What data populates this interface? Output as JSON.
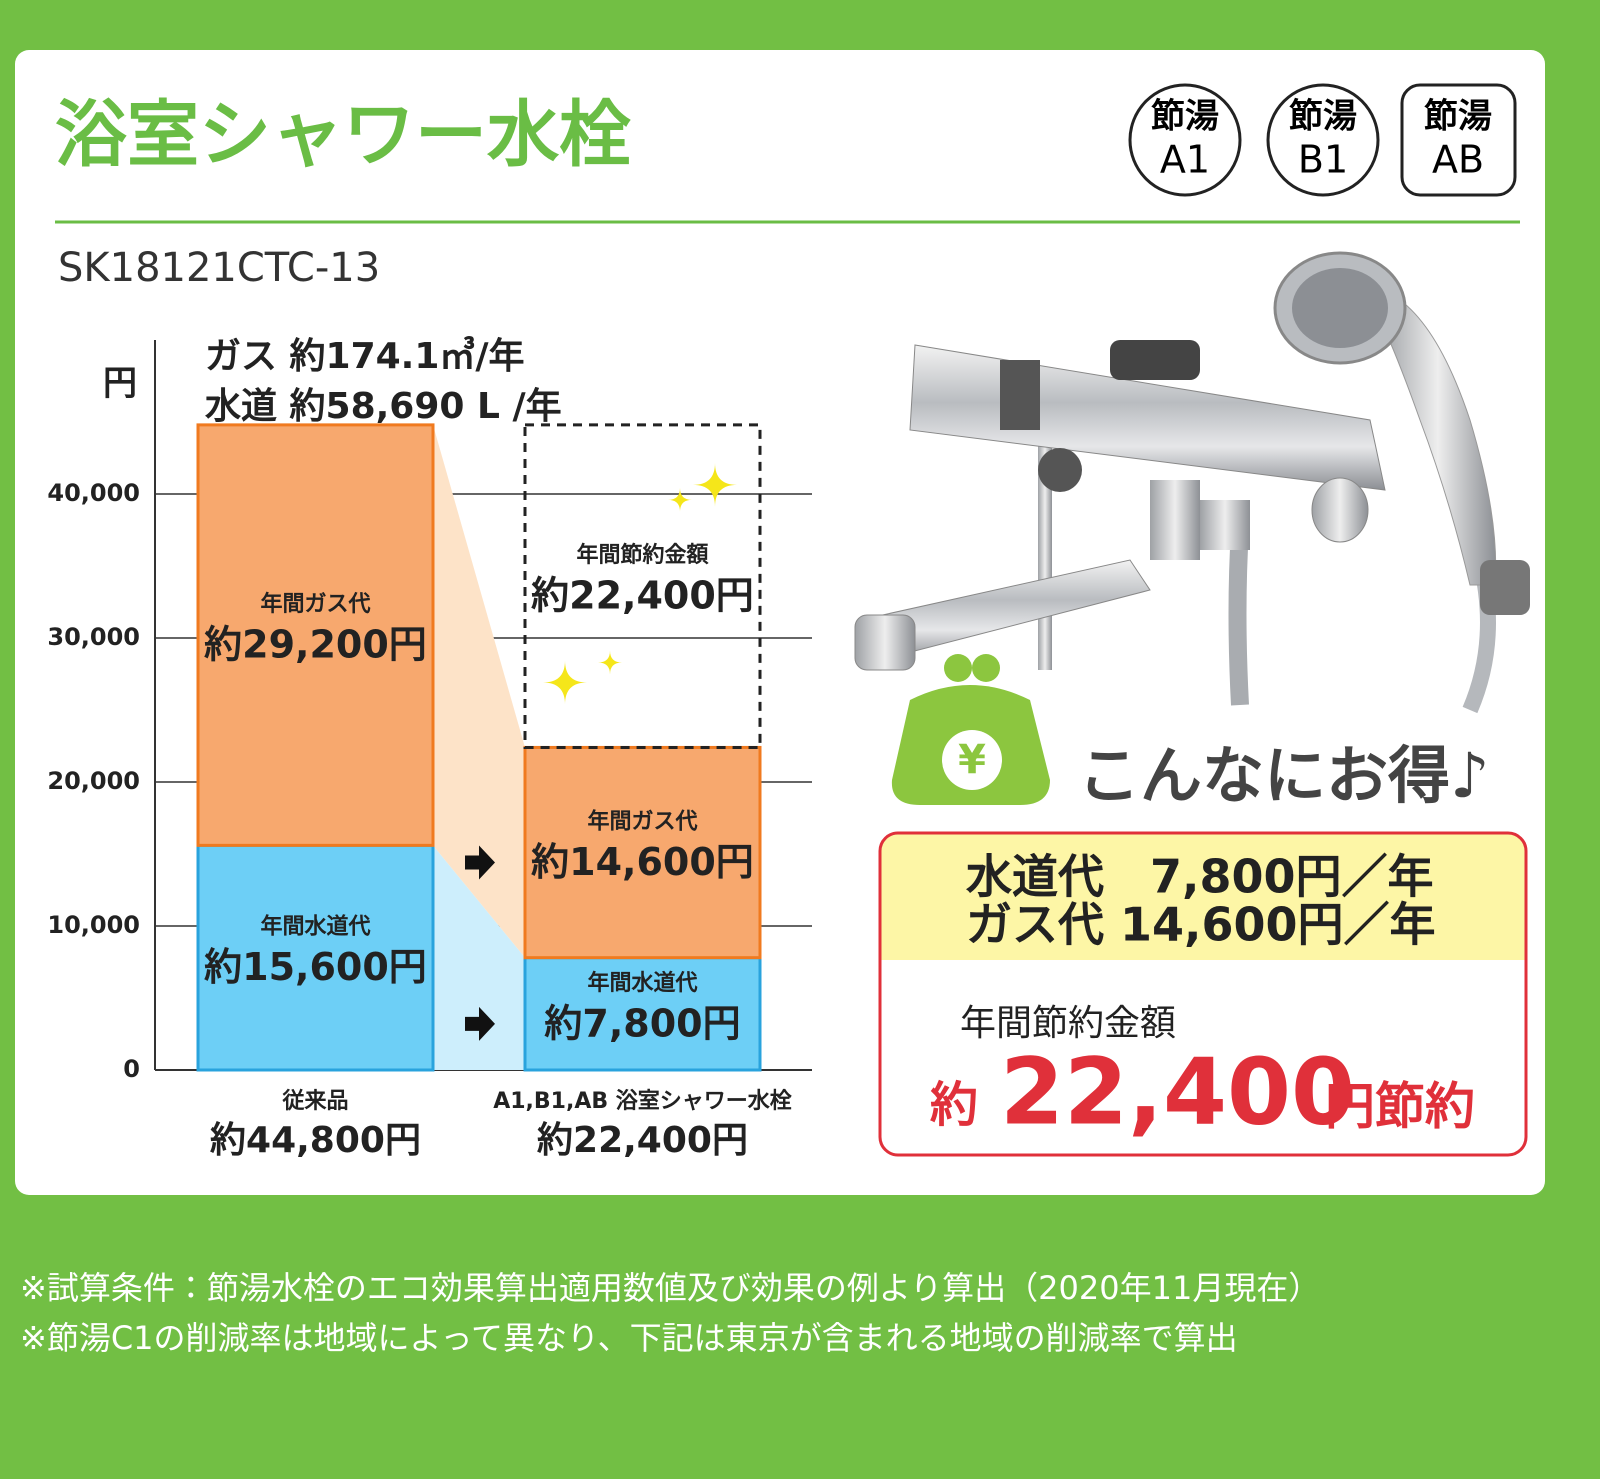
{
  "header": {
    "title": "浴室シャワー水栓",
    "badges": [
      {
        "top": "節湯",
        "bottom": "A1"
      },
      {
        "top": "節湯",
        "bottom": "B1"
      },
      {
        "top": "節湯",
        "bottom": "AB"
      }
    ],
    "model": "SK18121CTC-13"
  },
  "chart_data": {
    "type": "bar",
    "stacked": true,
    "y_label": "円",
    "annotations": [
      "ガス 約174.1㎥/年",
      "水道 約58,690 L /年"
    ],
    "categories": [
      "従来品",
      "A1,B1,AB 浴室シャワー水栓"
    ],
    "total_labels": [
      "約44,800円",
      "約22,400円"
    ],
    "series": [
      {
        "name": "年間水道代",
        "color": "#6dcff6",
        "values": [
          15600,
          7800
        ],
        "value_labels": [
          "約15,600円",
          "約7,800円"
        ]
      },
      {
        "name": "年間ガス代",
        "color": "#f7a86e",
        "values": [
          29200,
          14600
        ],
        "value_labels": [
          "約29,200円",
          "約14,600円"
        ]
      },
      {
        "name": "年間節約金額",
        "dashed": true,
        "values": [
          null,
          22400
        ],
        "value_labels": [
          null,
          "約22,400円"
        ]
      }
    ],
    "ylim": [
      0,
      50000
    ],
    "yticks": [
      0,
      {
        "value": 10000,
        "label": "10,000"
      },
      {
        "value": 20000,
        "label": "20,000"
      },
      {
        "value": 30000,
        "label": "30,000"
      },
      {
        "value": 40000,
        "label": "40,000"
      }
    ],
    "grid": true
  },
  "summary": {
    "slogan": "こんなにお得♪",
    "lines": [
      "水道代　7,800円／年",
      "ガス代 14,600円／年"
    ],
    "savings_label": "年間節約金額",
    "savings_prefix": "約",
    "savings_amount": "22,400",
    "savings_suffix": "円節約"
  },
  "notes": [
    "※試算条件：節湯水栓のエコ効果算出適用数値及び効果の例より算出（2020年11月現在）",
    "※節湯C1の削減率は地域によって異なり、下記は東京が含まれる地域の削減率で算出"
  ]
}
